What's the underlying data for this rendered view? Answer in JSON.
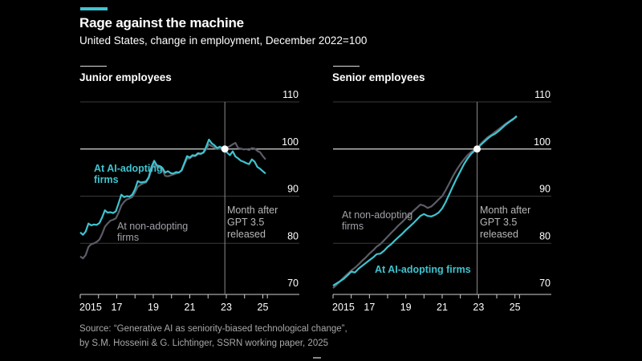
{
  "header": {
    "title": "Rage against the machine",
    "subtitle": "United States, change in employment, December 2022=100"
  },
  "colors": {
    "accent": "#3ec4d0",
    "ai_adopting": "#3ec4d0",
    "non_adopting": "#5c5c66",
    "background": "#000000",
    "grid": "#8a8a8a"
  },
  "source": {
    "line1": "Source: “Generative AI as seniority-biased technological change”,",
    "line2": "by S.M. Hosseini & G. Lichtinger, SSRN working paper, 2025"
  },
  "chart_data": [
    {
      "type": "line",
      "title": "Junior employees",
      "xlabel": "",
      "ylabel": "",
      "xlim": [
        2015.0,
        2027.0
      ],
      "ylim": [
        70,
        110
      ],
      "yticks": [
        70,
        80,
        90,
        100,
        110
      ],
      "xtick_labels": [
        "2015",
        "17",
        "19",
        "21",
        "23",
        "25"
      ],
      "xtick_values": [
        2015,
        2017,
        2019,
        2021,
        2023,
        2025
      ],
      "reference_line": {
        "x": 2022.92,
        "label": [
          "Month after",
          "GPT 3.5",
          "released"
        ]
      },
      "reference_point": {
        "x": 2022.92,
        "y": 100
      },
      "series": [
        {
          "name": "At AI-adopting firms",
          "label": [
            "At AI-adopting",
            "firms"
          ],
          "x": [
            2015.0,
            2015.15,
            2015.3,
            2015.45,
            2015.6,
            2015.75,
            2015.9,
            2016.05,
            2016.2,
            2016.35,
            2016.5,
            2016.65,
            2016.8,
            2016.95,
            2017.1,
            2017.25,
            2017.4,
            2017.55,
            2017.7,
            2017.85,
            2018.0,
            2018.15,
            2018.3,
            2018.45,
            2018.6,
            2018.75,
            2018.9,
            2019.05,
            2019.2,
            2019.35,
            2019.5,
            2019.65,
            2019.8,
            2019.95,
            2020.1,
            2020.25,
            2020.4,
            2020.55,
            2020.7,
            2020.85,
            2021.0,
            2021.15,
            2021.3,
            2021.45,
            2021.6,
            2021.75,
            2021.9,
            2022.05,
            2022.2,
            2022.35,
            2022.5,
            2022.65,
            2022.8,
            2022.92,
            2023.05,
            2023.2,
            2023.35,
            2023.5,
            2023.65,
            2023.8,
            2023.95,
            2024.1,
            2024.25,
            2024.4,
            2024.55,
            2024.7,
            2024.85,
            2025.0,
            2025.15
          ],
          "values": [
            82.3,
            81.8,
            82.5,
            84.2,
            83.8,
            84.0,
            83.9,
            84.3,
            85.5,
            87.0,
            86.5,
            86.6,
            86.4,
            86.8,
            88.5,
            90.3,
            89.8,
            90.0,
            89.9,
            90.3,
            91.5,
            93.2,
            92.9,
            93.0,
            93.1,
            94.0,
            96.2,
            97.5,
            96.5,
            96.4,
            96.0,
            95.0,
            95.3,
            94.9,
            94.8,
            95.1,
            95.0,
            95.5,
            97.0,
            98.5,
            98.2,
            98.7,
            98.6,
            99.1,
            99.0,
            99.3,
            100.5,
            102.0,
            101.2,
            100.8,
            100.2,
            100.5,
            100.1,
            100.0,
            99.2,
            98.7,
            99.5,
            98.4,
            98.0,
            97.5,
            97.3,
            97.0,
            96.8,
            97.8,
            97.3,
            96.2,
            95.8,
            95.3,
            94.8
          ]
        },
        {
          "name": "At non-adopting firms",
          "label": [
            "At non-adopting",
            "firms"
          ],
          "x": [
            2015.0,
            2015.15,
            2015.3,
            2015.45,
            2015.6,
            2015.75,
            2015.9,
            2016.05,
            2016.2,
            2016.35,
            2016.5,
            2016.65,
            2016.8,
            2016.95,
            2017.1,
            2017.25,
            2017.4,
            2017.55,
            2017.7,
            2017.85,
            2018.0,
            2018.15,
            2018.3,
            2018.45,
            2018.6,
            2018.75,
            2018.9,
            2019.05,
            2019.2,
            2019.35,
            2019.5,
            2019.65,
            2019.8,
            2019.95,
            2020.1,
            2020.25,
            2020.4,
            2020.55,
            2020.7,
            2020.85,
            2021.0,
            2021.15,
            2021.3,
            2021.45,
            2021.6,
            2021.75,
            2021.9,
            2022.05,
            2022.2,
            2022.35,
            2022.5,
            2022.65,
            2022.8,
            2022.92,
            2023.05,
            2023.2,
            2023.35,
            2023.5,
            2023.65,
            2023.8,
            2023.95,
            2024.1,
            2024.25,
            2024.4,
            2024.55,
            2024.7,
            2024.85,
            2025.0,
            2025.15
          ],
          "values": [
            77.2,
            76.8,
            77.5,
            79.2,
            79.8,
            80.0,
            80.3,
            80.8,
            82.0,
            83.5,
            84.2,
            84.8,
            85.0,
            85.3,
            86.5,
            88.0,
            88.8,
            89.3,
            89.5,
            89.8,
            90.8,
            92.0,
            92.4,
            92.7,
            92.9,
            93.8,
            95.5,
            96.8,
            96.2,
            96.0,
            95.6,
            94.3,
            94.2,
            94.4,
            94.6,
            94.8,
            95.0,
            95.4,
            96.7,
            98.0,
            98.0,
            98.5,
            98.5,
            98.9,
            98.9,
            99.2,
            100.0,
            101.0,
            100.6,
            100.3,
            100.0,
            100.1,
            100.0,
            100.0,
            100.3,
            100.6,
            101.0,
            101.3,
            100.2,
            100.1,
            99.9,
            100.0,
            99.8,
            100.2,
            100.1,
            99.6,
            99.3,
            98.5,
            97.8
          ]
        }
      ]
    },
    {
      "type": "line",
      "title": "Senior employees",
      "xlabel": "",
      "ylabel": "",
      "xlim": [
        2015.0,
        2027.0
      ],
      "ylim": [
        70,
        110
      ],
      "yticks": [
        70,
        80,
        90,
        100,
        110
      ],
      "xtick_labels": [
        "2015",
        "17",
        "19",
        "21",
        "23",
        "25"
      ],
      "xtick_values": [
        2015,
        2017,
        2019,
        2021,
        2023,
        2025
      ],
      "reference_line": {
        "x": 2022.92,
        "label": [
          "Month after",
          "GPT 3.5",
          "released"
        ]
      },
      "reference_point": {
        "x": 2022.92,
        "y": 100
      },
      "series": [
        {
          "name": "At AI-adopting firms",
          "label": [
            "At AI-adopting firms"
          ],
          "x": [
            2015.0,
            2015.2,
            2015.4,
            2015.6,
            2015.8,
            2016.0,
            2016.2,
            2016.4,
            2016.6,
            2016.8,
            2017.0,
            2017.2,
            2017.4,
            2017.6,
            2017.8,
            2018.0,
            2018.2,
            2018.4,
            2018.6,
            2018.8,
            2019.0,
            2019.2,
            2019.4,
            2019.6,
            2019.8,
            2020.0,
            2020.2,
            2020.4,
            2020.6,
            2020.8,
            2021.0,
            2021.2,
            2021.4,
            2021.6,
            2021.8,
            2022.0,
            2022.2,
            2022.4,
            2022.6,
            2022.8,
            2022.92,
            2023.1,
            2023.3,
            2023.5,
            2023.7,
            2023.9,
            2024.1,
            2024.3,
            2024.5,
            2024.7,
            2024.9,
            2025.1
          ],
          "values": [
            71.0,
            71.5,
            72.0,
            72.5,
            73.2,
            74.0,
            73.8,
            74.6,
            75.2,
            75.8,
            76.4,
            77.0,
            77.7,
            77.8,
            78.4,
            79.2,
            79.8,
            80.6,
            81.3,
            82.0,
            82.8,
            83.5,
            84.2,
            85.0,
            85.8,
            86.2,
            85.8,
            85.7,
            86.0,
            86.5,
            87.4,
            88.8,
            90.5,
            92.2,
            93.8,
            95.3,
            96.8,
            98.0,
            99.0,
            99.7,
            100.0,
            100.8,
            101.5,
            102.2,
            102.8,
            103.2,
            103.8,
            104.5,
            105.2,
            105.8,
            106.3,
            107.0
          ]
        },
        {
          "name": "At non-adopting firms",
          "label": [
            "At non-adopting",
            "firms"
          ],
          "x": [
            2015.0,
            2015.2,
            2015.4,
            2015.6,
            2015.8,
            2016.0,
            2016.2,
            2016.4,
            2016.6,
            2016.8,
            2017.0,
            2017.2,
            2017.4,
            2017.6,
            2017.8,
            2018.0,
            2018.2,
            2018.4,
            2018.6,
            2018.8,
            2019.0,
            2019.2,
            2019.4,
            2019.6,
            2019.8,
            2020.0,
            2020.2,
            2020.4,
            2020.6,
            2020.8,
            2021.0,
            2021.2,
            2021.4,
            2021.6,
            2021.8,
            2022.0,
            2022.2,
            2022.4,
            2022.6,
            2022.8,
            2022.92,
            2023.1,
            2023.3,
            2023.5,
            2023.7,
            2023.9,
            2024.1,
            2024.3,
            2024.5,
            2024.7,
            2024.9,
            2025.1
          ],
          "values": [
            70.5,
            71.2,
            72.0,
            72.8,
            73.5,
            74.2,
            74.8,
            75.5,
            76.3,
            77.0,
            77.8,
            78.5,
            79.3,
            79.8,
            80.6,
            81.4,
            82.2,
            83.0,
            83.8,
            84.5,
            85.3,
            86.0,
            86.8,
            87.5,
            88.2,
            88.0,
            87.5,
            87.8,
            88.5,
            89.3,
            90.0,
            91.3,
            92.8,
            94.3,
            95.6,
            96.8,
            97.8,
            98.7,
            99.4,
            99.8,
            100.0,
            101.0,
            101.8,
            102.5,
            103.0,
            103.6,
            104.2,
            104.8,
            105.4,
            105.9,
            106.4,
            106.8
          ]
        }
      ]
    }
  ]
}
